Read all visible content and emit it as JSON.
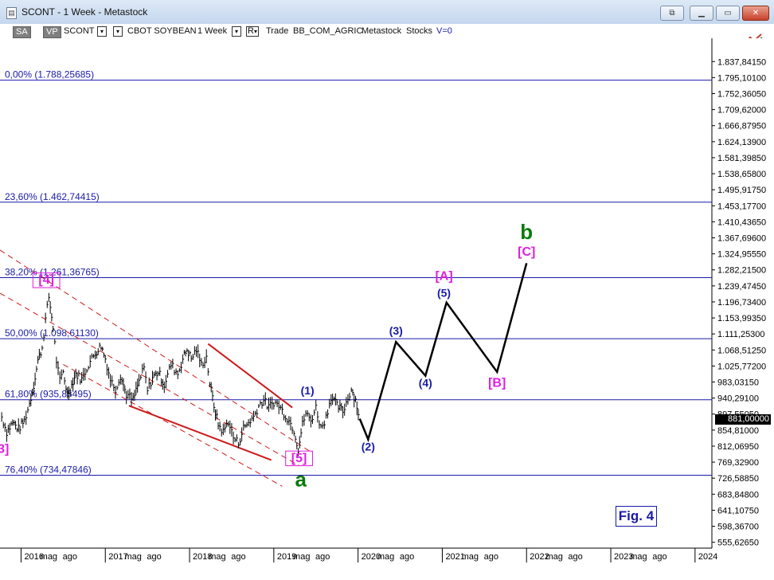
{
  "window": {
    "title": "SCONT - 1 Week - Metastock",
    "buttons": {
      "restore_down": "⧉",
      "minimize": "▁",
      "maximize": "▭",
      "close": "✕"
    }
  },
  "toolbar": {
    "sa": "SA",
    "vp": "VP",
    "symbol": "SCONT",
    "symbol_dd": "▾",
    "name_dd": "▾",
    "name": "CBOT SOYBEAN",
    "period": "1 Week",
    "period_dd": "▾",
    "r": "R",
    "r_dd": "▾",
    "trade": "Trade",
    "market": "BB_COM_AGRIC",
    "metastock": "Metastock",
    "stocks": "Stocks",
    "volume": "V=0"
  },
  "last_price": "881,00000",
  "figure_label": "Fig. 4",
  "colors": {
    "blue": "#1a1aa8",
    "magenta": "#e01ee0",
    "green": "#0a7a0a",
    "red": "#cc1a1a",
    "candle": "#000000"
  },
  "chart_data": {
    "type": "line",
    "y_scale": "linear",
    "y_ticks": [
      "1.837,84150",
      "1.795,10100",
      "1.752,36050",
      "1.709,62000",
      "1.666,87950",
      "1.624,13900",
      "1.581,39850",
      "1.538,65800",
      "1.495,91750",
      "1.453,17700",
      "1.410,43650",
      "1.367,69600",
      "1.324,95550",
      "1.282,21500",
      "1.239,47450",
      "1.196,73400",
      "1.153,99350",
      "1.111,25300",
      "1.068,51250",
      "1.025,77200",
      "983,03150",
      "940,29100",
      "897,55050",
      "854,81000",
      "812,06950",
      "769,32900",
      "726,58850",
      "683,84800",
      "641,10750",
      "598,36700",
      "555,62650"
    ],
    "y_tick_values": [
      1837.8415,
      1795.101,
      1752.3605,
      1709.62,
      1666.8795,
      1624.139,
      1581.3985,
      1538.658,
      1495.9175,
      1453.177,
      1410.4365,
      1367.696,
      1324.9555,
      1282.215,
      1239.4745,
      1196.734,
      1153.9935,
      1111.253,
      1068.5125,
      1025.772,
      983.0315,
      940.291,
      897.5505,
      854.81,
      812.0695,
      769.329,
      726.5885,
      683.848,
      641.1075,
      598.367,
      555.6265
    ],
    "x_ticks": [
      "2016",
      "mag",
      "ago",
      "2017",
      "mag",
      "ago",
      "2018",
      "mag",
      "ago",
      "2019",
      "mag",
      "ago",
      "2020",
      "mag",
      "ago",
      "2021",
      "mag",
      "ago",
      "2022",
      "mag",
      "ago",
      "2023",
      "mag",
      "ago",
      "2024"
    ],
    "x_tick_values": [
      2016.0,
      2016.33,
      2016.58,
      2017.0,
      2017.33,
      2017.58,
      2018.0,
      2018.33,
      2018.58,
      2019.0,
      2019.33,
      2019.58,
      2020.0,
      2020.33,
      2020.58,
      2021.0,
      2021.33,
      2021.58,
      2022.0,
      2022.33,
      2022.58,
      2023.0,
      2023.33,
      2023.58,
      2024.0
    ],
    "x_range": [
      2015.75,
      2024.2
    ],
    "y_range": [
      540,
      1900
    ],
    "fib_levels": [
      {
        "label": "0,00% (1.788,25685)",
        "value": 1788.25685
      },
      {
        "label": "23,60% (1.462,74415)",
        "value": 1462.74415
      },
      {
        "label": "38,20% (1.261,36765)",
        "value": 1261.36765
      },
      {
        "label": "50,00% (1.098,61130)",
        "value": 1098.6113
      },
      {
        "label": "61,80% (935,85495)",
        "value": 935.85495
      },
      {
        "label": "76,40% (734,47846)",
        "value": 734.47846
      }
    ],
    "price_series": {
      "name": "",
      "points": [
        [
          2015.77,
          890
        ],
        [
          2015.83,
          850
        ],
        [
          2015.9,
          875
        ],
        [
          2015.97,
          858
        ],
        [
          2016.04,
          880
        ],
        [
          2016.1,
          925
        ],
        [
          2016.15,
          975
        ],
        [
          2016.2,
          1040
        ],
        [
          2016.25,
          1075
        ],
        [
          2016.29,
          1150
        ],
        [
          2016.33,
          1210
        ],
        [
          2016.38,
          1130
        ],
        [
          2016.42,
          1040
        ],
        [
          2016.46,
          985
        ],
        [
          2016.5,
          1010
        ],
        [
          2016.55,
          950
        ],
        [
          2016.6,
          975
        ],
        [
          2016.65,
          1005
        ],
        [
          2016.72,
          990
        ],
        [
          2016.8,
          1030
        ],
        [
          2016.88,
          1060
        ],
        [
          2016.95,
          1080
        ],
        [
          2017.0,
          1045
        ],
        [
          2017.06,
          990
        ],
        [
          2017.12,
          965
        ],
        [
          2017.18,
          1000
        ],
        [
          2017.25,
          950
        ],
        [
          2017.33,
          935
        ],
        [
          2017.4,
          985
        ],
        [
          2017.46,
          1020
        ],
        [
          2017.5,
          960
        ],
        [
          2017.56,
          995
        ],
        [
          2017.63,
          1010
        ],
        [
          2017.7,
          975
        ],
        [
          2017.78,
          1030
        ],
        [
          2017.86,
          1005
        ],
        [
          2017.92,
          1045
        ],
        [
          2017.97,
          1070
        ],
        [
          2018.02,
          1045
        ],
        [
          2018.08,
          1070
        ],
        [
          2018.14,
          1030
        ],
        [
          2018.2,
          1050
        ],
        [
          2018.24,
          980
        ],
        [
          2018.29,
          920
        ],
        [
          2018.34,
          870
        ],
        [
          2018.4,
          850
        ],
        [
          2018.46,
          880
        ],
        [
          2018.52,
          835
        ],
        [
          2018.58,
          820
        ],
        [
          2018.64,
          860
        ],
        [
          2018.7,
          875
        ],
        [
          2018.76,
          890
        ],
        [
          2018.82,
          920
        ],
        [
          2018.88,
          935
        ],
        [
          2018.94,
          915
        ],
        [
          2019.0,
          930
        ],
        [
          2019.06,
          920
        ],
        [
          2019.12,
          900
        ],
        [
          2019.18,
          880
        ],
        [
          2019.24,
          855
        ],
        [
          2019.29,
          805
        ],
        [
          2019.34,
          870
        ],
        [
          2019.38,
          900
        ],
        [
          2019.44,
          880
        ],
        [
          2019.5,
          915
        ],
        [
          2019.56,
          860
        ],
        [
          2019.62,
          890
        ],
        [
          2019.68,
          945
        ],
        [
          2019.75,
          920
        ],
        [
          2019.82,
          905
        ],
        [
          2019.88,
          940
        ],
        [
          2019.92,
          965
        ],
        [
          2019.97,
          935
        ],
        [
          2020.02,
          885
        ]
      ]
    },
    "projection": {
      "points": [
        [
          2020.02,
          885
        ],
        [
          2020.12,
          830
        ],
        [
          2020.45,
          1090
        ],
        [
          2020.8,
          1000
        ],
        [
          2021.05,
          1195
        ],
        [
          2021.65,
          1010
        ],
        [
          2022.0,
          1300
        ]
      ]
    },
    "channels": [
      {
        "style": "dashed",
        "points": [
          [
            2015.75,
            1220
          ],
          [
            2019.3,
            760
          ]
        ]
      },
      {
        "style": "dashed",
        "points": [
          [
            2015.75,
            1335
          ],
          [
            2019.45,
            795
          ]
        ]
      },
      {
        "style": "dashed",
        "points": [
          [
            2016.5,
            1030
          ],
          [
            2019.1,
            705
          ]
        ]
      },
      {
        "style": "solid",
        "points": [
          [
            2018.22,
            1085
          ],
          [
            2019.22,
            915
          ]
        ]
      },
      {
        "style": "solid",
        "points": [
          [
            2017.28,
            920
          ],
          [
            2018.97,
            775
          ]
        ]
      }
    ],
    "wave_labels": [
      {
        "text": "b",
        "x": 2022.0,
        "y": 1365,
        "color": "green",
        "size": 26,
        "framed": false
      },
      {
        "text": "[C]",
        "x": 2022.0,
        "y": 1320,
        "color": "magenta",
        "size": 16,
        "framed": false
      },
      {
        "text": "[A]",
        "x": 2021.02,
        "y": 1255,
        "color": "magenta",
        "size": 16,
        "framed": false
      },
      {
        "text": "(5)",
        "x": 2021.02,
        "y": 1210,
        "color": "blue",
        "size": 14,
        "framed": false
      },
      {
        "text": "(3)",
        "x": 2020.45,
        "y": 1110,
        "color": "blue",
        "size": 14,
        "framed": false
      },
      {
        "text": "(4)",
        "x": 2020.8,
        "y": 970,
        "color": "blue",
        "size": 14,
        "framed": false
      },
      {
        "text": "[B]",
        "x": 2021.65,
        "y": 970,
        "color": "magenta",
        "size": 16,
        "framed": false
      },
      {
        "text": "(1)",
        "x": 2019.4,
        "y": 950,
        "color": "blue",
        "size": 14,
        "framed": false
      },
      {
        "text": "(2)",
        "x": 2020.12,
        "y": 800,
        "color": "blue",
        "size": 14,
        "framed": false
      },
      {
        "text": "[5]",
        "x": 2019.3,
        "y": 770,
        "color": "magenta",
        "size": 16,
        "framed": true
      },
      {
        "text": "a",
        "x": 2019.32,
        "y": 705,
        "color": "green",
        "size": 26,
        "framed": false
      },
      {
        "text": "[4]",
        "x": 2016.3,
        "y": 1245,
        "color": "magenta",
        "size": 16,
        "framed": true
      },
      {
        "text": "3]",
        "x": 2015.79,
        "y": 794,
        "color": "magenta",
        "size": 16,
        "framed": false
      }
    ]
  }
}
